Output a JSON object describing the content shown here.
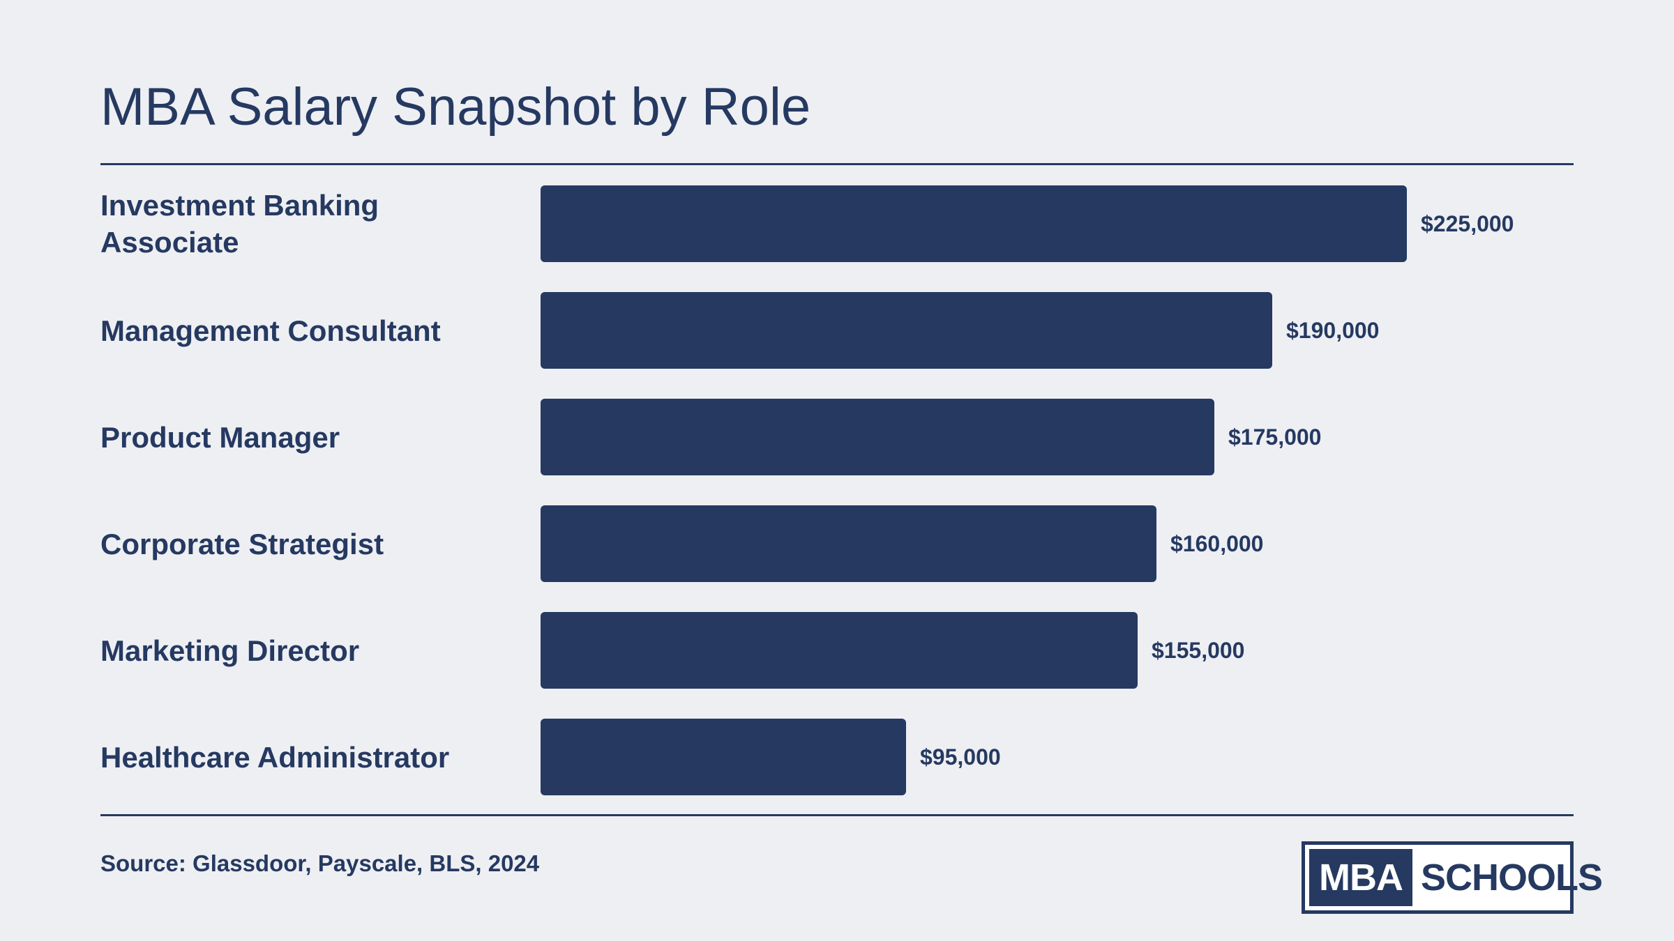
{
  "chart_data": {
    "type": "bar",
    "orientation": "horizontal",
    "title": "MBA Salary Snapshot by Role",
    "xlabel": "",
    "ylabel": "",
    "xlim": [
      0,
      240000
    ],
    "grid": false,
    "categories": [
      "Investment Banking Associate",
      "Management Consultant",
      "Product Manager",
      "Corporate Strategist",
      "Marketing Director",
      "Healthcare Administrator"
    ],
    "values": [
      225000,
      190000,
      175000,
      160000,
      155000,
      95000
    ],
    "data_labels": [
      "$225,000",
      "$190,000",
      "$175,000",
      "$160,000",
      "$155,000",
      "$95,000"
    ],
    "bar_color": "#253961"
  },
  "footer": {
    "source": "Source: Glassdoor, Payscale, BLS, 2024",
    "logo_left": "MBA",
    "logo_right": "SCHOOLS"
  },
  "colors": {
    "background": "#eeeff3",
    "text": "#253961"
  }
}
